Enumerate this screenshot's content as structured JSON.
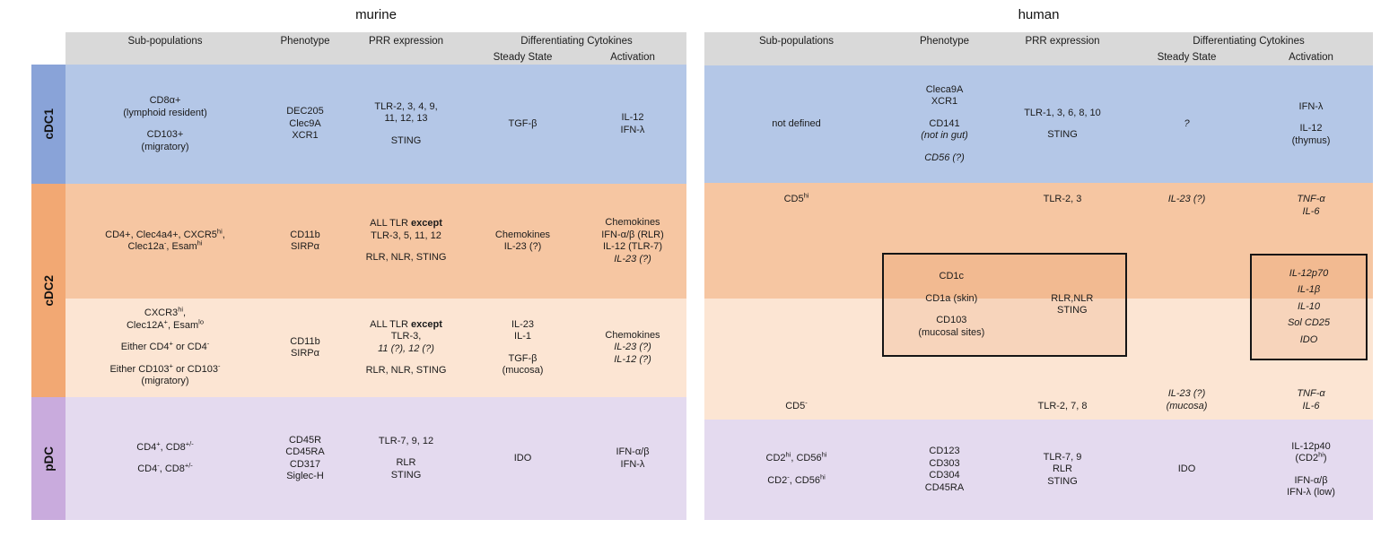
{
  "figure": {
    "left_title": "murine",
    "right_title": "human"
  },
  "headers": {
    "sub_populations": "Sub-populations",
    "phenotype": "Phenotype",
    "prr_expression": "PRR expression",
    "differentiating_cytokines": "Differentiating Cytokines",
    "steady_state": "Steady State",
    "activation": "Activation"
  },
  "row_group_labels": [
    "cDC1",
    "cDC2",
    "pDC"
  ],
  "colors": {
    "header_bg": "#d9d9d9",
    "cdc1_label_bg": "#89a3d8",
    "cdc1_row_bg": "#b4c7e7",
    "cdc2_label_bg": "#f2a873",
    "cdc2_row1_bg": "#f6c6a2",
    "cdc2_row2_bg": "#fce5d3",
    "pdc_label_bg": "#c9abdd",
    "pdc_row_bg": "#e4daef",
    "box_border": "#151515"
  },
  "murine": {
    "rows": [
      {
        "group": "cDC1",
        "sub": [
          "CD8α+",
          "(lymphoid resident)",
          "",
          "CD103+",
          "(migratory)"
        ],
        "phenotype": [
          "DEC205",
          "Clec9A",
          "XCR1"
        ],
        "prr": [
          "TLR-2, 3, 4, 9,",
          "11, 12, 13",
          "",
          "STING"
        ],
        "steady": [
          "TGF-β"
        ],
        "activation": [
          "IL-12",
          "IFN-λ"
        ]
      },
      {
        "group": "cDC2",
        "sub": [
          "CD4+, Clec4a4+, CXCR5~hi~,",
          "Clec12a~-~, Esam~hi~"
        ],
        "phenotype": [
          "CD11b",
          "SIRPα"
        ],
        "prr": [
          "ALL TLR *except*",
          "TLR-3, 5, 11, 12",
          "",
          "RLR, NLR, STING"
        ],
        "steady": [
          "Chemokines",
          "IL-23 (?)"
        ],
        "activation": [
          "Chemokines",
          "IFN-α/β (RLR)",
          "IL-12 (TLR-7)",
          "_IL-23 (?)_"
        ]
      },
      {
        "group": "cDC2",
        "sub": [
          "CXCR3~hi~,",
          "Clec12A~+~, Esam~lo~",
          "",
          "Either CD4~+~ or CD4~-~",
          "",
          "Either CD103~+~ or CD103~-~",
          "(migratory)"
        ],
        "phenotype": [
          "CD11b",
          "SIRPα"
        ],
        "prr": [
          "ALL TLR *except*",
          "TLR-3,",
          "_11 (?), 12 (?)_",
          "",
          "RLR, NLR, STING"
        ],
        "steady": [
          "IL-23",
          "IL-1",
          "",
          "TGF-β",
          "(mucosa)"
        ],
        "activation": [
          "Chemokines",
          "_IL-23 (?)_",
          "_IL-12 (?)_"
        ]
      },
      {
        "group": "pDC",
        "sub": [
          "CD4~+~, CD8~+/-~",
          "",
          "CD4~-~, CD8~+/-~"
        ],
        "phenotype": [
          "CD45R",
          "CD45RA",
          "CD317",
          "Siglec-H"
        ],
        "prr": [
          "TLR-7, 9, 12",
          "",
          "RLR",
          "STING"
        ],
        "steady": [
          "IDO"
        ],
        "activation": [
          "IFN-α/β",
          "IFN-λ"
        ]
      }
    ]
  },
  "human": {
    "rows": [
      {
        "group": "cDC1",
        "sub": [
          "not defined"
        ],
        "phenotype": [
          "Cleca9A",
          "XCR1",
          "",
          "CD141",
          "_(not in gut)_",
          "",
          "_CD56 (?)_"
        ],
        "prr": [
          "TLR-1, 3, 6, 8, 10",
          "",
          "STING"
        ],
        "steady": [
          "_?_"
        ],
        "activation": [
          "IFN-λ",
          "",
          "IL-12",
          "(thymus)"
        ]
      },
      {
        "group": "cDC2",
        "sub": [
          "CD5~hi~"
        ],
        "phenotype": [],
        "prr": [
          "TLR-2, 3"
        ],
        "steady": [
          "_IL-23 (?)_"
        ],
        "activation": [
          "_TNF-α_",
          "_IL-6_"
        ]
      },
      {
        "group": "cDC2",
        "sub": [
          "CD5~-~"
        ],
        "phenotype": [],
        "prr": [
          "TLR-2, 7, 8"
        ],
        "steady": [
          "_IL-23 (?)_",
          "_(mucosa)_"
        ],
        "activation": [
          "_TNF-α_",
          "_IL-6_"
        ]
      },
      {
        "group": "pDC",
        "sub": [
          "CD2~hi~, CD56~hi~",
          "",
          "CD2~-~, CD56~hi~"
        ],
        "phenotype": [
          "CD123",
          "CD303",
          "CD304",
          "CD45RA"
        ],
        "prr": [
          "TLR-7, 9",
          "RLR",
          "STING"
        ],
        "steady": [
          "IDO"
        ],
        "activation": [
          "IL-12p40",
          "(CD2~hi~)",
          "",
          "IFN-α/β",
          "IFN-λ (low)"
        ]
      }
    ],
    "boxes": {
      "markers_left": [
        "CD1c",
        "",
        "CD1a (skin)",
        "",
        "CD103",
        "(mucosal sites)"
      ],
      "markers_right": [
        "RLR,NLR",
        "STING"
      ],
      "cytokines": [
        "_IL-12p70_",
        "_IL-1β_",
        "_IL-10_",
        "_Sol CD25_",
        "_IDO_"
      ]
    }
  }
}
